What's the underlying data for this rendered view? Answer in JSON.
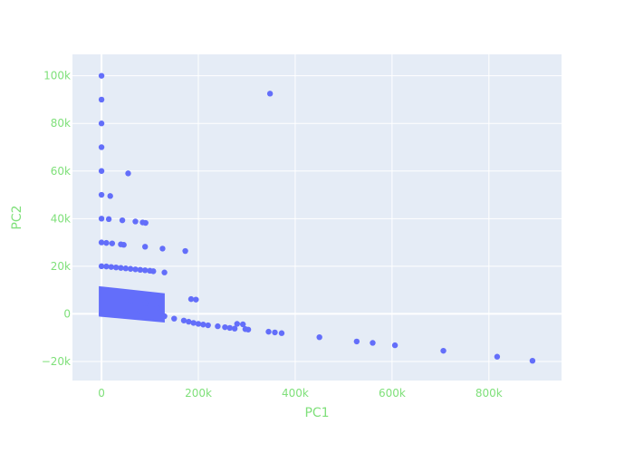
{
  "chart_data": {
    "type": "scatter",
    "title": "",
    "xlabel": "PC1",
    "ylabel": "PC2",
    "xlim": [
      -60000,
      950000
    ],
    "ylim": [
      -28000,
      109000
    ],
    "xticks": [
      0,
      200000,
      400000,
      600000,
      800000
    ],
    "xtick_labels": [
      "0",
      "200k",
      "400k",
      "600k",
      "800k"
    ],
    "yticks": [
      -20000,
      0,
      20000,
      40000,
      60000,
      80000,
      100000
    ],
    "ytick_labels": [
      "−20k",
      "0",
      "20k",
      "40k",
      "60k",
      "80k",
      "100k"
    ],
    "grid": true,
    "colors": {
      "marker": "#636efa",
      "plot_bg": "#e5ecf6",
      "grid": "#ffffff",
      "axis_text": "#7fe07a"
    },
    "points": [
      {
        "x": 0,
        "y": 100000
      },
      {
        "x": 0,
        "y": 90000
      },
      {
        "x": 0,
        "y": 80000
      },
      {
        "x": 0,
        "y": 70000
      },
      {
        "x": 0,
        "y": 60000
      },
      {
        "x": 55000,
        "y": 59000
      },
      {
        "x": 0,
        "y": 50000
      },
      {
        "x": 18000,
        "y": 49500
      },
      {
        "x": 348000,
        "y": 92500
      },
      {
        "x": 0,
        "y": 40000
      },
      {
        "x": 15000,
        "y": 39800
      },
      {
        "x": 43000,
        "y": 39300
      },
      {
        "x": 70000,
        "y": 38800
      },
      {
        "x": 85000,
        "y": 38400
      },
      {
        "x": 91000,
        "y": 38200
      },
      {
        "x": 0,
        "y": 30000
      },
      {
        "x": 10000,
        "y": 29800
      },
      {
        "x": 22000,
        "y": 29600
      },
      {
        "x": 40000,
        "y": 29200
      },
      {
        "x": 46000,
        "y": 29000
      },
      {
        "x": 90000,
        "y": 28200
      },
      {
        "x": 126000,
        "y": 27400
      },
      {
        "x": 173000,
        "y": 26400
      },
      {
        "x": 0,
        "y": 20000
      },
      {
        "x": 10000,
        "y": 19900
      },
      {
        "x": 20000,
        "y": 19700
      },
      {
        "x": 30000,
        "y": 19500
      },
      {
        "x": 40000,
        "y": 19300
      },
      {
        "x": 50000,
        "y": 19100
      },
      {
        "x": 60000,
        "y": 18900
      },
      {
        "x": 70000,
        "y": 18700
      },
      {
        "x": 80000,
        "y": 18500
      },
      {
        "x": 90000,
        "y": 18300
      },
      {
        "x": 100000,
        "y": 18100
      },
      {
        "x": 107000,
        "y": 17900
      },
      {
        "x": 130000,
        "y": 17400
      },
      {
        "x": 185000,
        "y": 6200
      },
      {
        "x": 195000,
        "y": 6000
      },
      {
        "x": 0,
        "y": 0
      },
      {
        "x": 50000,
        "y": 500
      },
      {
        "x": 80000,
        "y": 1000
      },
      {
        "x": 60000,
        "y": 5500
      },
      {
        "x": 90000,
        "y": 4500
      },
      {
        "x": 100000,
        "y": 3500
      },
      {
        "x": 115000,
        "y": 2500
      },
      {
        "x": 130000,
        "y": -1000
      },
      {
        "x": 150000,
        "y": -2000
      },
      {
        "x": 170000,
        "y": -2800
      },
      {
        "x": 180000,
        "y": -3300
      },
      {
        "x": 190000,
        "y": -3800
      },
      {
        "x": 200000,
        "y": -4200
      },
      {
        "x": 210000,
        "y": -4500
      },
      {
        "x": 220000,
        "y": -4800
      },
      {
        "x": 240000,
        "y": -5200
      },
      {
        "x": 255000,
        "y": -5600
      },
      {
        "x": 265000,
        "y": -5900
      },
      {
        "x": 275000,
        "y": -6200
      },
      {
        "x": 280000,
        "y": -4200
      },
      {
        "x": 292000,
        "y": -4400
      },
      {
        "x": 297000,
        "y": -6400
      },
      {
        "x": 303000,
        "y": -6600
      },
      {
        "x": 345000,
        "y": -7500
      },
      {
        "x": 358000,
        "y": -7800
      },
      {
        "x": 372000,
        "y": -8100
      },
      {
        "x": 450000,
        "y": -9800
      },
      {
        "x": 527000,
        "y": -11600
      },
      {
        "x": 560000,
        "y": -12200
      },
      {
        "x": 606000,
        "y": -13200
      },
      {
        "x": 706000,
        "y": -15500
      },
      {
        "x": 817000,
        "y": -18000
      },
      {
        "x": 890000,
        "y": -19700
      }
    ],
    "dense_band": {
      "x_from": 0,
      "x_to": 125000,
      "y_top_at_start": 10500,
      "y_top_at_end": 7500,
      "y_bottom_at_start": 0,
      "y_bottom_at_end": -2500
    }
  }
}
